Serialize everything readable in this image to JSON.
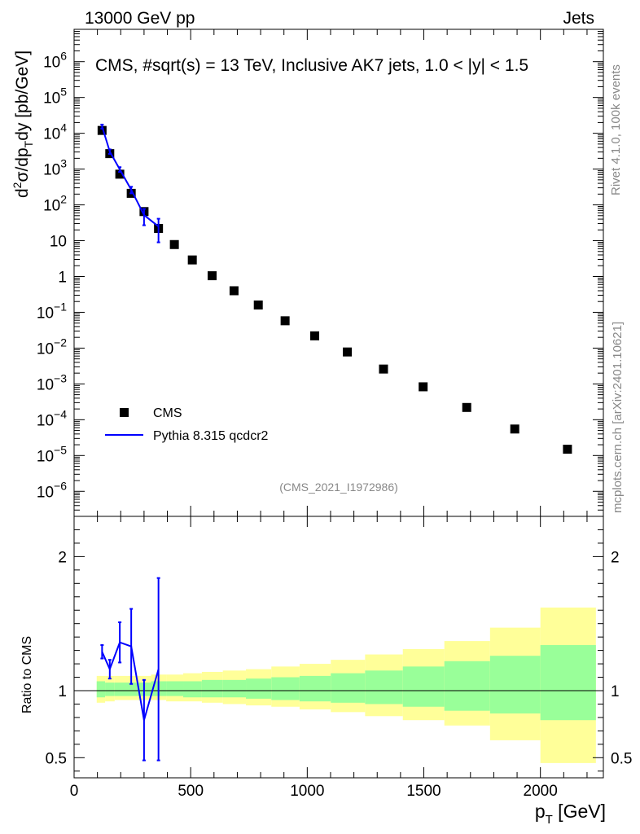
{
  "header": {
    "left": "13000 GeV pp",
    "right": "Jets"
  },
  "side_labels": {
    "rivet": "Rivet 4.1.0,  100k events",
    "mcplots": "mcplots.cern.ch [arXiv:2401.10621]"
  },
  "chart_data": {
    "type": "scatter",
    "title": "CMS, #sqrt(s) = 13 TeV, Inclusive AK7 jets, 1.0 < |y| < 1.5",
    "watermark": "(CMS_2021_I1972986)",
    "xlabel": "p_T [GeV]",
    "xlabel_main": "p",
    "xlabel_sub": "T",
    "xlabel_unit": " [GeV]",
    "ylabel": "d^2σ/dp_T dy [pb/GeV]",
    "ylabel_ratio": "Ratio to CMS",
    "xlim": [
      0,
      2270
    ],
    "ylim": [
      2e-07,
      8000000.0
    ],
    "ratio_ylim": [
      0.35,
      2.3
    ],
    "x_ticks": [
      0,
      500,
      1000,
      1500,
      2000
    ],
    "x_tick_labels": [
      "0",
      "500",
      "1000",
      "1500",
      "2000"
    ],
    "y_ticks": [
      {
        "exp": 6,
        "text": "10",
        "sup": "6"
      },
      {
        "exp": 5,
        "text": "10",
        "sup": "5"
      },
      {
        "exp": 4,
        "text": "10",
        "sup": "4"
      },
      {
        "exp": 3,
        "text": "10",
        "sup": "3"
      },
      {
        "exp": 2,
        "text": "10",
        "sup": "2"
      },
      {
        "exp": 1,
        "text": "10",
        "sup": ""
      },
      {
        "exp": 0,
        "text": "1",
        "sup": ""
      },
      {
        "exp": -1,
        "text": "10",
        "sup": "−1"
      },
      {
        "exp": -2,
        "text": "10",
        "sup": "−2"
      },
      {
        "exp": -3,
        "text": "10",
        "sup": "−3"
      },
      {
        "exp": -4,
        "text": "10",
        "sup": "−4"
      },
      {
        "exp": -5,
        "text": "10",
        "sup": "−5"
      },
      {
        "exp": -6,
        "text": "10",
        "sup": "−6"
      }
    ],
    "ratio_ticks": [
      0.5,
      1,
      2
    ],
    "ratio_tick_labels": [
      "0.5",
      "1",
      "2"
    ],
    "legend": [
      {
        "name": "CMS",
        "marker": "square",
        "color": "#000000"
      },
      {
        "name": "Pythia 8.315 qcdcr2",
        "marker": "line",
        "color": "#0000ff"
      }
    ],
    "cms": {
      "x": [
        120,
        153,
        196,
        245,
        300,
        362,
        430,
        507,
        592,
        686,
        790,
        905,
        1032,
        1172,
        1327,
        1497,
        1684,
        1890,
        2116
      ],
      "y": [
        12000,
        2700,
        720,
        210,
        65,
        22,
        7.8,
        2.9,
        1.05,
        0.4,
        0.16,
        0.058,
        0.022,
        0.0078,
        0.0026,
        0.00083,
        0.00022,
        5.5e-05,
        1.5e-05
      ],
      "xlow": [
        97,
        133,
        174,
        220,
        272,
        330,
        395,
        468,
        548,
        638,
        737,
        846,
        967,
        1101,
        1248,
        1410,
        1588,
        1784,
        2000
      ],
      "xhigh": [
        133,
        174,
        220,
        272,
        330,
        395,
        468,
        548,
        638,
        737,
        846,
        967,
        1101,
        1248,
        1410,
        1588,
        1784,
        2000,
        2238
      ],
      "band_inner": [
        [
          0.95,
          1.07
        ],
        [
          0.96,
          1.06
        ],
        [
          0.96,
          1.06
        ],
        [
          0.96,
          1.06
        ],
        [
          0.96,
          1.06
        ],
        [
          0.96,
          1.07
        ],
        [
          0.96,
          1.07
        ],
        [
          0.95,
          1.07
        ],
        [
          0.95,
          1.08
        ],
        [
          0.95,
          1.08
        ],
        [
          0.94,
          1.09
        ],
        [
          0.93,
          1.1
        ],
        [
          0.92,
          1.11
        ],
        [
          0.91,
          1.13
        ],
        [
          0.9,
          1.15
        ],
        [
          0.88,
          1.18
        ],
        [
          0.85,
          1.22
        ],
        [
          0.83,
          1.26
        ],
        [
          0.78,
          1.34
        ]
      ],
      "band_outer": [
        [
          0.91,
          1.11
        ],
        [
          0.92,
          1.11
        ],
        [
          0.93,
          1.11
        ],
        [
          0.93,
          1.11
        ],
        [
          0.93,
          1.11
        ],
        [
          0.93,
          1.12
        ],
        [
          0.92,
          1.12
        ],
        [
          0.92,
          1.13
        ],
        [
          0.91,
          1.14
        ],
        [
          0.9,
          1.15
        ],
        [
          0.89,
          1.16
        ],
        [
          0.88,
          1.18
        ],
        [
          0.86,
          1.2
        ],
        [
          0.84,
          1.23
        ],
        [
          0.81,
          1.27
        ],
        [
          0.78,
          1.31
        ],
        [
          0.74,
          1.37
        ],
        [
          0.63,
          1.47
        ],
        [
          0.46,
          1.62
        ]
      ]
    },
    "pythia": {
      "x": [
        120,
        153,
        196,
        245,
        300,
        362
      ],
      "y": [
        15500,
        3100,
        980,
        265,
        52,
        25
      ],
      "yerr": [
        2000,
        450,
        150,
        55,
        25,
        16
      ],
      "ratio": [
        1.29,
        1.16,
        1.36,
        1.33,
        0.78,
        1.16
      ],
      "ratio_err": [
        0.05,
        0.07,
        0.15,
        0.28,
        0.3,
        0.68
      ]
    }
  }
}
